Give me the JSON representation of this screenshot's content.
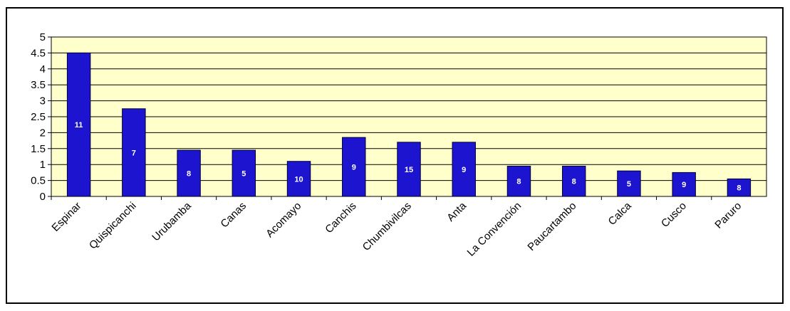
{
  "chart_data": {
    "type": "bar",
    "categories": [
      "Espinar",
      "Quispicanchi",
      "Urubamba",
      "Canas",
      "Acomayo",
      "Canchis",
      "Chumbivilcas",
      "Anta",
      "La Convención",
      "Paucartambo",
      "Calca",
      "Cusco",
      "Paruro"
    ],
    "values": [
      4.5,
      2.75,
      1.45,
      1.45,
      1.1,
      1.85,
      1.7,
      1.7,
      0.95,
      0.95,
      0.8,
      0.75,
      0.55
    ],
    "data_labels": [
      "11",
      "7",
      "8",
      "5",
      "10",
      "9",
      "15",
      "9",
      "8",
      "8",
      "5",
      "9",
      "8"
    ],
    "yticks": [
      "0",
      "0.5",
      "1",
      "1.5",
      "2",
      "2.5",
      "3",
      "3.5",
      "4",
      "4.5",
      "5"
    ],
    "ylim": [
      0,
      5
    ],
    "grid": true,
    "legend": "none",
    "title": "",
    "xlabel": "",
    "ylabel": "",
    "colors": {
      "bar_fill": "#1c14cf",
      "bar_stroke": "#000033",
      "plot_background": "#ffffcc",
      "gridline": "#000000"
    }
  }
}
